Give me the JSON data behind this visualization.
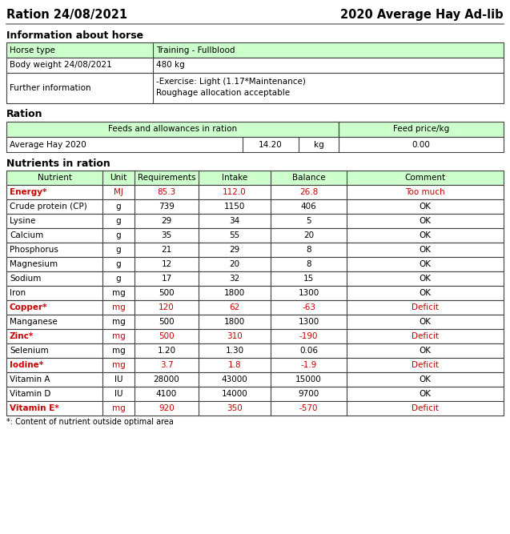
{
  "title_left": "Ration 24/08/2021",
  "title_right": "2020 Average Hay Ad-lib",
  "section1_title": "Information about horse",
  "horse_info": [
    [
      "Horse type",
      "Training - Fullblood"
    ],
    [
      "Body weight 24/08/2021",
      "480 kg"
    ],
    [
      "Further information",
      "-Exercise: Light (1.17*Maintenance)\nRoughage allocation acceptable"
    ]
  ],
  "section2_title": "Ration",
  "ration_header": [
    "Feeds and allowances in ration",
    "Feed price/kg"
  ],
  "ration_data": [
    [
      "Average Hay 2020",
      "14.20",
      "kg",
      "0.00"
    ]
  ],
  "section3_title": "Nutrients in ration",
  "nutrients_header": [
    "Nutrient",
    "Unit",
    "Requirements",
    "Intake",
    "Balance",
    "Comment"
  ],
  "nutrients_data": [
    [
      "Energy*",
      "MJ",
      "85.3",
      "112.0",
      "26.8",
      "Too much",
      true
    ],
    [
      "Crude protein (CP)",
      "g",
      "739",
      "1150",
      "406",
      "OK",
      false
    ],
    [
      "Lysine",
      "g",
      "29",
      "34",
      "5",
      "OK",
      false
    ],
    [
      "Calcium",
      "g",
      "35",
      "55",
      "20",
      "OK",
      false
    ],
    [
      "Phosphorus",
      "g",
      "21",
      "29",
      "8",
      "OK",
      false
    ],
    [
      "Magnesium",
      "g",
      "12",
      "20",
      "8",
      "OK",
      false
    ],
    [
      "Sodium",
      "g",
      "17",
      "32",
      "15",
      "OK",
      false
    ],
    [
      "Iron",
      "mg",
      "500",
      "1800",
      "1300",
      "OK",
      false
    ],
    [
      "Copper*",
      "mg",
      "120",
      "62",
      "-63",
      "Deficit",
      true
    ],
    [
      "Manganese",
      "mg",
      "500",
      "1800",
      "1300",
      "OK",
      false
    ],
    [
      "Zinc*",
      "mg",
      "500",
      "310",
      "-190",
      "Deficit",
      true
    ],
    [
      "Selenium",
      "mg",
      "1.20",
      "1.30",
      "0.06",
      "OK",
      false
    ],
    [
      "Iodine*",
      "mg",
      "3.7",
      "1.8",
      "-1.9",
      "Deficit",
      true
    ],
    [
      "Vitamin A",
      "IU",
      "28000",
      "43000",
      "15000",
      "OK",
      false
    ],
    [
      "Vitamin D",
      "IU",
      "4100",
      "14000",
      "9700",
      "OK",
      false
    ],
    [
      "Vitamin E*",
      "mg",
      "920",
      "350",
      "-570",
      "Deficit",
      true
    ]
  ],
  "footnote": "*: Content of nutrient outside optimal area",
  "bg_color": "#ffffff",
  "header_bg": "#ccffcc",
  "border_color": "#404040",
  "red_color": "#cc0000",
  "black_color": "#000000"
}
